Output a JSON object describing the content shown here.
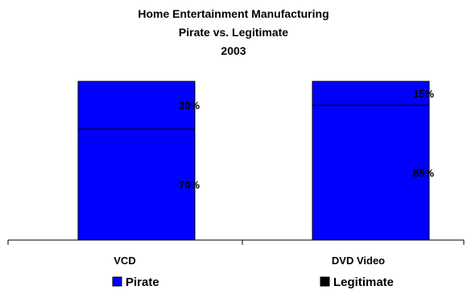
{
  "chart_data": {
    "type": "bar",
    "stacked": true,
    "percent": true,
    "title": "Home Entertainment Manufacturing",
    "subtitle": "Pirate vs. Legitimate",
    "year": "2003",
    "categories": [
      "VCD",
      "DVD Video"
    ],
    "series": [
      {
        "name": "Pirate",
        "values": [
          70,
          85
        ],
        "labels": [
          "70%",
          "85%"
        ]
      },
      {
        "name": "Legitimate",
        "values": [
          30,
          15
        ],
        "labels": [
          "30%",
          "15%"
        ]
      }
    ],
    "ylim": [
      0,
      100
    ],
    "grid": false,
    "legend": "bottom",
    "colors": {
      "bar_fill": "#0000FF",
      "outline": "#000000",
      "pirate_swatch": "#0000FF",
      "legitimate_swatch": "#000000"
    }
  }
}
